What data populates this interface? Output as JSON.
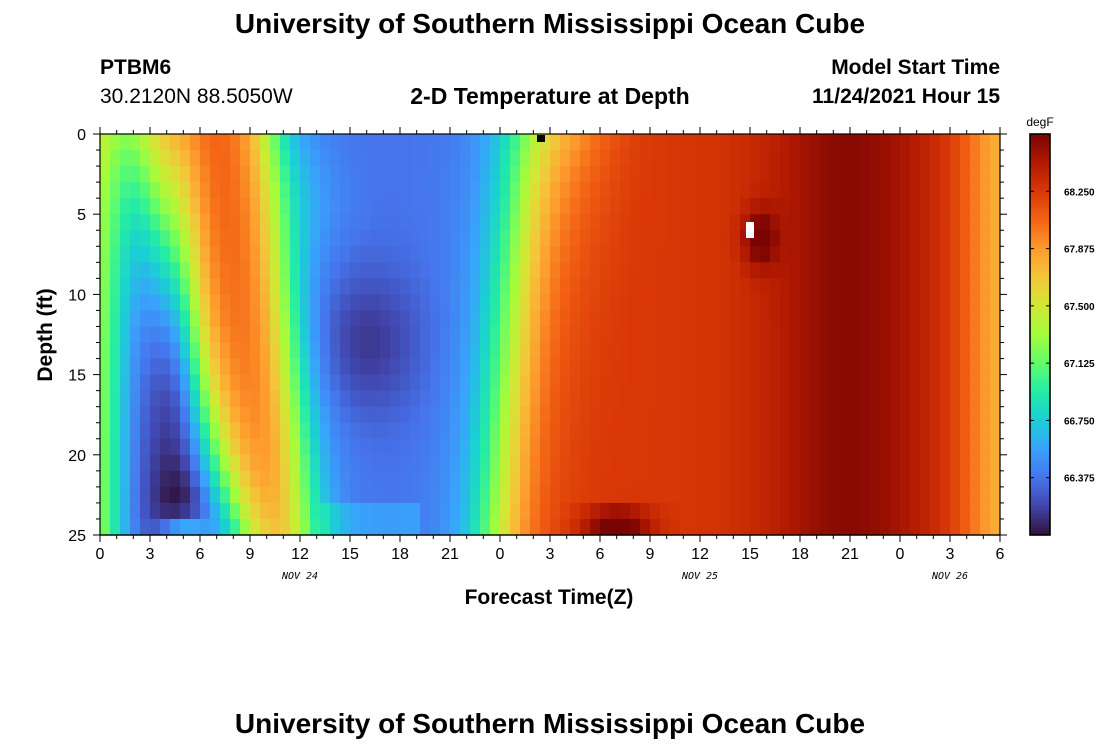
{
  "page": {
    "title_top": "University of Southern Mississippi Ocean Cube",
    "title_bottom": "University of Southern Mississippi Ocean Cube",
    "station": "PTBM6",
    "coordinates": "30.2120N  88.5050W",
    "subtitle": "2-D Temperature at Depth",
    "model_start_label": "Model Start Time",
    "model_start_value": "11/24/2021 Hour 15"
  },
  "chart_data": {
    "type": "heatmap",
    "title": "2-D Temperature at Depth",
    "xlabel": "Forecast Time(Z)",
    "ylabel": "Depth (ft)",
    "x_unit": "hours since 00Z Nov 24",
    "xlim": [
      0,
      54
    ],
    "x_ticks": [
      0,
      3,
      6,
      9,
      12,
      15,
      18,
      21,
      24,
      27,
      30,
      33,
      36,
      39,
      42,
      45,
      48,
      51,
      54
    ],
    "x_tick_labels": [
      "0",
      "3",
      "6",
      "9",
      "12",
      "15",
      "18",
      "21",
      "0",
      "3",
      "6",
      "9",
      "12",
      "15",
      "18",
      "21",
      "0",
      "3",
      "6"
    ],
    "date_labels": [
      {
        "x": 12,
        "label": "NOV 24"
      },
      {
        "x": 36,
        "label": "NOV 25"
      },
      {
        "x": 51,
        "label": "NOV 26"
      }
    ],
    "ylim": [
      0,
      25
    ],
    "y_inverted": true,
    "y_ticks": [
      0,
      5,
      10,
      15,
      20,
      25
    ],
    "colorbar": {
      "unit": "degF",
      "min": 66.0,
      "max": 68.625,
      "tick_values": [
        68.25,
        67.875,
        67.5,
        67.125,
        66.75,
        66.375
      ],
      "tick_labels": [
        "68.250",
        "67.875",
        "67.500",
        "67.125",
        "66.750",
        "66.375"
      ],
      "colors": [
        "#30123b",
        "#4145ab",
        "#4675ed",
        "#39a2fc",
        "#1bcfd4",
        "#24eca6",
        "#61fc6c",
        "#a4fc3b",
        "#d1e834",
        "#f3c63a",
        "#fe9b2d",
        "#f36315",
        "#d93806",
        "#b11901",
        "#7a0402"
      ]
    },
    "grid": false,
    "legend": "colorbar-right"
  }
}
